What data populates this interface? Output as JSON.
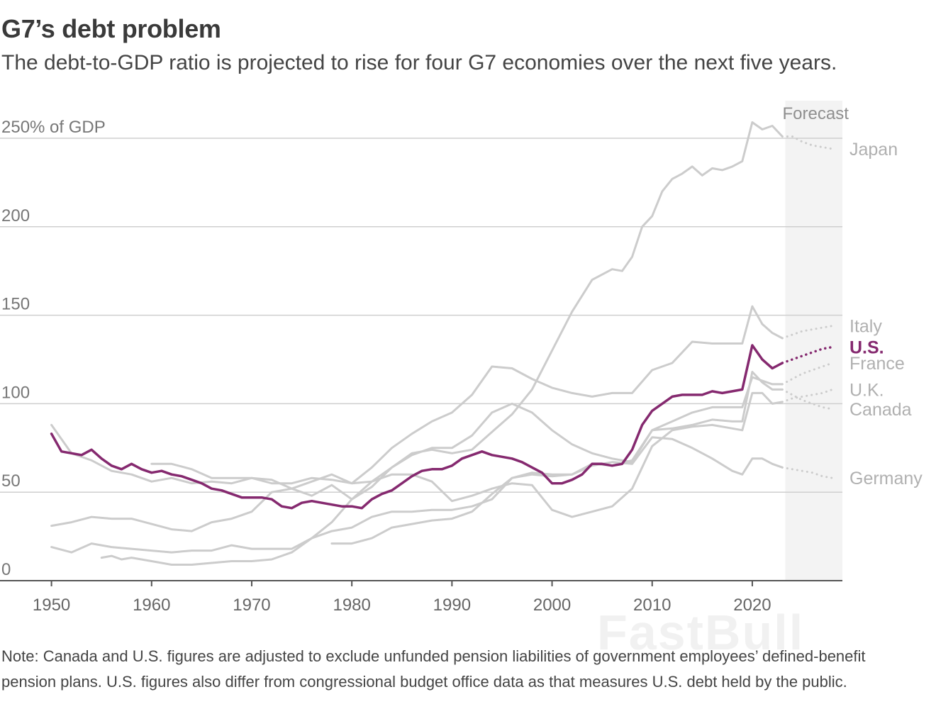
{
  "header": {
    "title": "G7’s debt problem",
    "subtitle": "The debt-to-GDP ratio is projected to rise for four G7 economies over the next five years."
  },
  "note": "Note: Canada and U.S. figures are adjusted to exclude unfunded pension liabilities of government employees’ defined-benefit pension plans. U.S. figures also differ from congressional budget office data as that measures U.S. debt held by the public.",
  "watermark": "FastBull",
  "chart_data": {
    "type": "line",
    "title": "",
    "xlabel": "",
    "ylabel": "% of GDP",
    "xlim": [
      1945,
      2029
    ],
    "ylim": [
      0,
      250
    ],
    "x_ticks": [
      1950,
      1960,
      1970,
      1980,
      1990,
      2000,
      2010,
      2020
    ],
    "y_ticks": [
      {
        "value": 0,
        "label": "0"
      },
      {
        "value": 50,
        "label": "50"
      },
      {
        "value": 100,
        "label": "100"
      },
      {
        "value": 150,
        "label": "150"
      },
      {
        "value": 200,
        "label": "200"
      },
      {
        "value": 250,
        "label": "250% of GDP"
      }
    ],
    "forecast": {
      "label": "Forecast",
      "start": 2023.3,
      "end": 2029
    },
    "colors": {
      "highlight": "#85296f",
      "muted": "#cccccc",
      "muted_label": "#b0b0b0",
      "forecast_band": "#f3f3f3",
      "grid": "#cfcfcf",
      "axis": "#555555"
    },
    "series": [
      {
        "name": "Japan",
        "highlight": false,
        "label_value": 244,
        "x": [
          1955,
          1956,
          1957,
          1958,
          1960,
          1962,
          1964,
          1966,
          1968,
          1970,
          1972,
          1974,
          1976,
          1978,
          1980,
          1982,
          1984,
          1986,
          1988,
          1990,
          1992,
          1994,
          1996,
          1998,
          2000,
          2002,
          2004,
          2006,
          2007,
          2008,
          2009,
          2010,
          2011,
          2012,
          2013,
          2014,
          2015,
          2016,
          2017,
          2018,
          2019,
          2020,
          2021,
          2022,
          2023
        ],
        "y": [
          13,
          14,
          12,
          13,
          11,
          9,
          9,
          10,
          11,
          11,
          12,
          16,
          24,
          33,
          46,
          56,
          64,
          72,
          74,
          72,
          74,
          84,
          94,
          108,
          130,
          152,
          170,
          176,
          175,
          183,
          200,
          206,
          220,
          227,
          230,
          234,
          229,
          233,
          232,
          234,
          237,
          259,
          255,
          257,
          251
        ],
        "forecast_x": [
          2023,
          2024,
          2025,
          2026,
          2027,
          2028
        ],
        "forecast_y": [
          251,
          251,
          248,
          246,
          245,
          244
        ]
      },
      {
        "name": "Italy",
        "highlight": false,
        "label_value": 144,
        "x": [
          1950,
          1952,
          1954,
          1956,
          1958,
          1960,
          1962,
          1964,
          1966,
          1968,
          1970,
          1972,
          1974,
          1976,
          1978,
          1980,
          1982,
          1984,
          1986,
          1988,
          1990,
          1992,
          1994,
          1996,
          1998,
          2000,
          2002,
          2004,
          2006,
          2008,
          2010,
          2012,
          2014,
          2016,
          2018,
          2019,
          2020,
          2021,
          2022,
          2023
        ],
        "y": [
          31,
          33,
          36,
          35,
          35,
          32,
          29,
          28,
          33,
          35,
          39,
          50,
          52,
          56,
          60,
          55,
          64,
          75,
          83,
          90,
          95,
          105,
          121,
          120,
          114,
          109,
          106,
          104,
          106,
          106,
          119,
          123,
          135,
          134,
          134,
          134,
          155,
          145,
          140,
          137
        ],
        "forecast_x": [
          2023,
          2024,
          2025,
          2026,
          2027,
          2028
        ],
        "forecast_y": [
          137,
          139,
          141,
          142,
          143,
          144
        ]
      },
      {
        "name": "France",
        "highlight": false,
        "label_value": 123,
        "x": [
          1978,
          1980,
          1982,
          1984,
          1986,
          1988,
          1990,
          1992,
          1994,
          1996,
          1998,
          2000,
          2002,
          2004,
          2006,
          2008,
          2010,
          2012,
          2014,
          2016,
          2018,
          2019,
          2020,
          2021,
          2022,
          2023
        ],
        "y": [
          21,
          21,
          24,
          30,
          32,
          34,
          35,
          39,
          49,
          58,
          60,
          59,
          60,
          66,
          65,
          68,
          85,
          90,
          95,
          98,
          98,
          98,
          115,
          113,
          111,
          111
        ],
        "forecast_x": [
          2023,
          2024,
          2025,
          2026,
          2027,
          2028
        ],
        "forecast_y": [
          111,
          114,
          117,
          119,
          121,
          123
        ]
      },
      {
        "name": "U.K.",
        "highlight": false,
        "label_value": 108,
        "x": [
          1960,
          1962,
          1964,
          1966,
          1968,
          1970,
          1972,
          1974,
          1976,
          1978,
          1980,
          1982,
          1984,
          1986,
          1988,
          1990,
          1992,
          1994,
          1996,
          1998,
          2000,
          2002,
          2004,
          2006,
          2008,
          2010,
          2012,
          2014,
          2016,
          2018,
          2019,
          2020,
          2021,
          2022,
          2023
        ],
        "y": [
          66,
          66,
          63,
          58,
          58,
          58,
          55,
          55,
          58,
          57,
          55,
          56,
          60,
          60,
          56,
          45,
          48,
          52,
          55,
          54,
          40,
          36,
          39,
          42,
          52,
          76,
          85,
          87,
          88,
          86,
          85,
          106,
          106,
          100,
          101
        ],
        "forecast_x": [
          2023,
          2024,
          2025,
          2026,
          2027,
          2028
        ],
        "forecast_y": [
          101,
          103,
          104,
          105,
          106,
          108
        ]
      },
      {
        "name": "Canada",
        "highlight": false,
        "label_value": 97,
        "x": [
          1950,
          1952,
          1954,
          1956,
          1958,
          1960,
          1962,
          1964,
          1966,
          1968,
          1970,
          1972,
          1974,
          1976,
          1978,
          1980,
          1982,
          1984,
          1986,
          1988,
          1990,
          1992,
          1994,
          1996,
          1998,
          2000,
          2002,
          2004,
          2006,
          2008,
          2010,
          2012,
          2014,
          2016,
          2018,
          2019,
          2020,
          2021,
          2022,
          2023
        ],
        "y": [
          88,
          72,
          68,
          62,
          60,
          56,
          58,
          55,
          56,
          55,
          58,
          57,
          52,
          48,
          54,
          46,
          53,
          64,
          71,
          75,
          75,
          82,
          95,
          100,
          95,
          85,
          77,
          72,
          69,
          67,
          85,
          86,
          88,
          91,
          90,
          90,
          118,
          112,
          108,
          108
        ],
        "forecast_x": [
          2023,
          2024,
          2025,
          2026,
          2027,
          2028
        ],
        "forecast_y": [
          108,
          105,
          102,
          100,
          98,
          97
        ]
      },
      {
        "name": "Germany",
        "highlight": false,
        "label_value": 58,
        "x": [
          1950,
          1952,
          1954,
          1956,
          1958,
          1960,
          1962,
          1964,
          1966,
          1968,
          1970,
          1972,
          1974,
          1976,
          1978,
          1980,
          1982,
          1984,
          1986,
          1988,
          1990,
          1992,
          1994,
          1996,
          1998,
          2000,
          2002,
          2004,
          2006,
          2008,
          2010,
          2012,
          2014,
          2016,
          2018,
          2019,
          2020,
          2021,
          2022,
          2023
        ],
        "y": [
          19,
          16,
          21,
          19,
          18,
          17,
          16,
          17,
          17,
          20,
          18,
          18,
          18,
          24,
          28,
          30,
          36,
          39,
          39,
          40,
          40,
          42,
          46,
          58,
          61,
          60,
          60,
          65,
          67,
          66,
          81,
          80,
          75,
          69,
          62,
          60,
          69,
          69,
          66,
          64
        ],
        "forecast_x": [
          2023,
          2024,
          2025,
          2026,
          2027,
          2028
        ],
        "forecast_y": [
          64,
          63,
          62,
          61,
          59,
          58
        ]
      },
      {
        "name": "U.S.",
        "highlight": true,
        "label_value": 132,
        "x": [
          1950,
          1951,
          1952,
          1953,
          1954,
          1955,
          1956,
          1957,
          1958,
          1959,
          1960,
          1961,
          1962,
          1963,
          1964,
          1965,
          1966,
          1967,
          1968,
          1969,
          1970,
          1971,
          1972,
          1973,
          1974,
          1975,
          1976,
          1977,
          1978,
          1979,
          1980,
          1981,
          1982,
          1983,
          1984,
          1985,
          1986,
          1987,
          1988,
          1989,
          1990,
          1991,
          1992,
          1993,
          1994,
          1995,
          1996,
          1997,
          1998,
          1999,
          2000,
          2001,
          2002,
          2003,
          2004,
          2005,
          2006,
          2007,
          2008,
          2009,
          2010,
          2011,
          2012,
          2013,
          2014,
          2015,
          2016,
          2017,
          2018,
          2019,
          2020,
          2021,
          2022,
          2023
        ],
        "y": [
          83,
          73,
          72,
          71,
          74,
          69,
          65,
          63,
          66,
          63,
          61,
          62,
          60,
          59,
          57,
          55,
          52,
          51,
          49,
          47,
          47,
          47,
          46,
          42,
          41,
          44,
          45,
          44,
          43,
          42,
          42,
          41,
          46,
          49,
          51,
          55,
          59,
          62,
          63,
          63,
          65,
          69,
          71,
          73,
          71,
          70,
          69,
          67,
          64,
          61,
          55,
          55,
          57,
          60,
          66,
          66,
          65,
          66,
          74,
          88,
          96,
          100,
          104,
          105,
          105,
          105,
          107,
          106,
          107,
          108,
          133,
          125,
          120,
          123
        ],
        "forecast_x": [
          2023,
          2024,
          2025,
          2026,
          2027,
          2028
        ],
        "forecast_y": [
          123,
          125,
          127,
          129,
          131,
          132
        ]
      }
    ]
  }
}
